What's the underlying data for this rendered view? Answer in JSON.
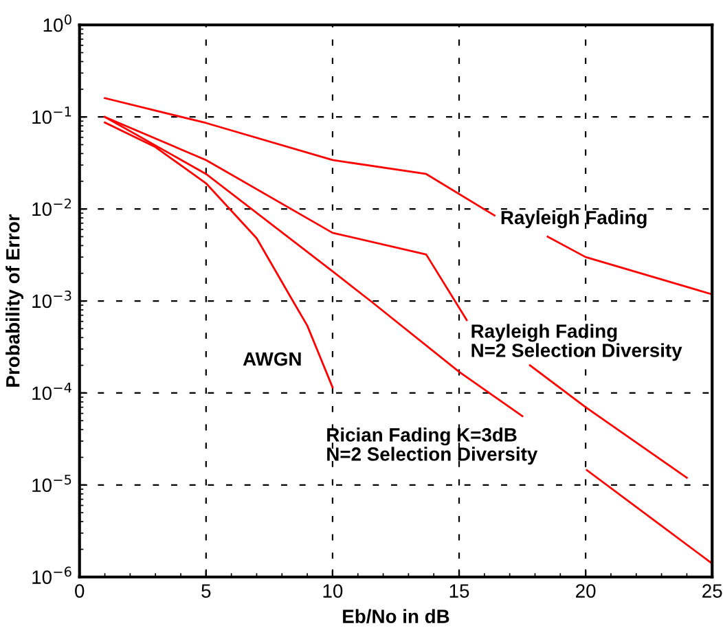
{
  "chart_data": {
    "type": "line",
    "xlabel": "Eb/No in dB",
    "ylabel": "Probability of Error",
    "log": "y",
    "grid": true,
    "line_style": "solid",
    "xlim": [
      0,
      25
    ],
    "xticks": [
      0,
      5,
      10,
      15,
      20,
      25
    ],
    "ylim": [
      1e-06,
      1
    ],
    "yticks": [
      {
        "value": 1e-06,
        "label": "10$^{−6}$"
      },
      {
        "value": 1e-05,
        "label": "10$^{−5}$"
      },
      {
        "value": 0.0001,
        "label": "10$^{−4}$"
      },
      {
        "value": 0.001,
        "label": "10$^{−3}$"
      },
      {
        "value": 0.01,
        "label": "10$^{−2}$"
      },
      {
        "value": 0.1,
        "label": "10$^{−1}$"
      },
      {
        "value": 1,
        "label": "10$^{0}$"
      }
    ],
    "series": [
      {
        "name": "Rayleigh Fading",
        "color": "#ff0000",
        "x": [
          1,
          5,
          10,
          13.7,
          16.4,
          17.5,
          18.5,
          20,
          25
        ],
        "values": [
          0.16,
          0.086,
          0.034,
          0.024,
          0.0085,
          null,
          0.005,
          0.003,
          0.00118
        ]
      },
      {
        "name": "Rayleigh Fading\nN=2 Selection Diversity",
        "color": "#ff0000",
        "x": [
          1,
          5,
          10,
          13.7,
          15.3,
          16.5,
          17.8,
          20,
          24
        ],
        "values": [
          0.1,
          0.034,
          0.0055,
          0.0032,
          0.00062,
          null,
          0.0002,
          7e-05,
          1.2e-05
        ]
      },
      {
        "name": "Rician Fading K=3dB\nN=2 Selection Diversity",
        "color": "#ff0000",
        "x": [
          1,
          5,
          10,
          11.5,
          15,
          17.5,
          18.8,
          20.05,
          25
        ],
        "values": [
          0.1,
          0.024,
          0.0021,
          0.001,
          0.00017,
          5.6e-05,
          null,
          1.45e-05,
          1.4e-06
        ]
      },
      {
        "name": "AWGN",
        "color": "#ff0000",
        "x": [
          1,
          3,
          5,
          7,
          8.45,
          9,
          10
        ],
        "values": [
          0.087,
          0.047,
          0.019,
          0.0048,
          0.00098,
          0.00054,
          0.000115
        ]
      }
    ]
  }
}
